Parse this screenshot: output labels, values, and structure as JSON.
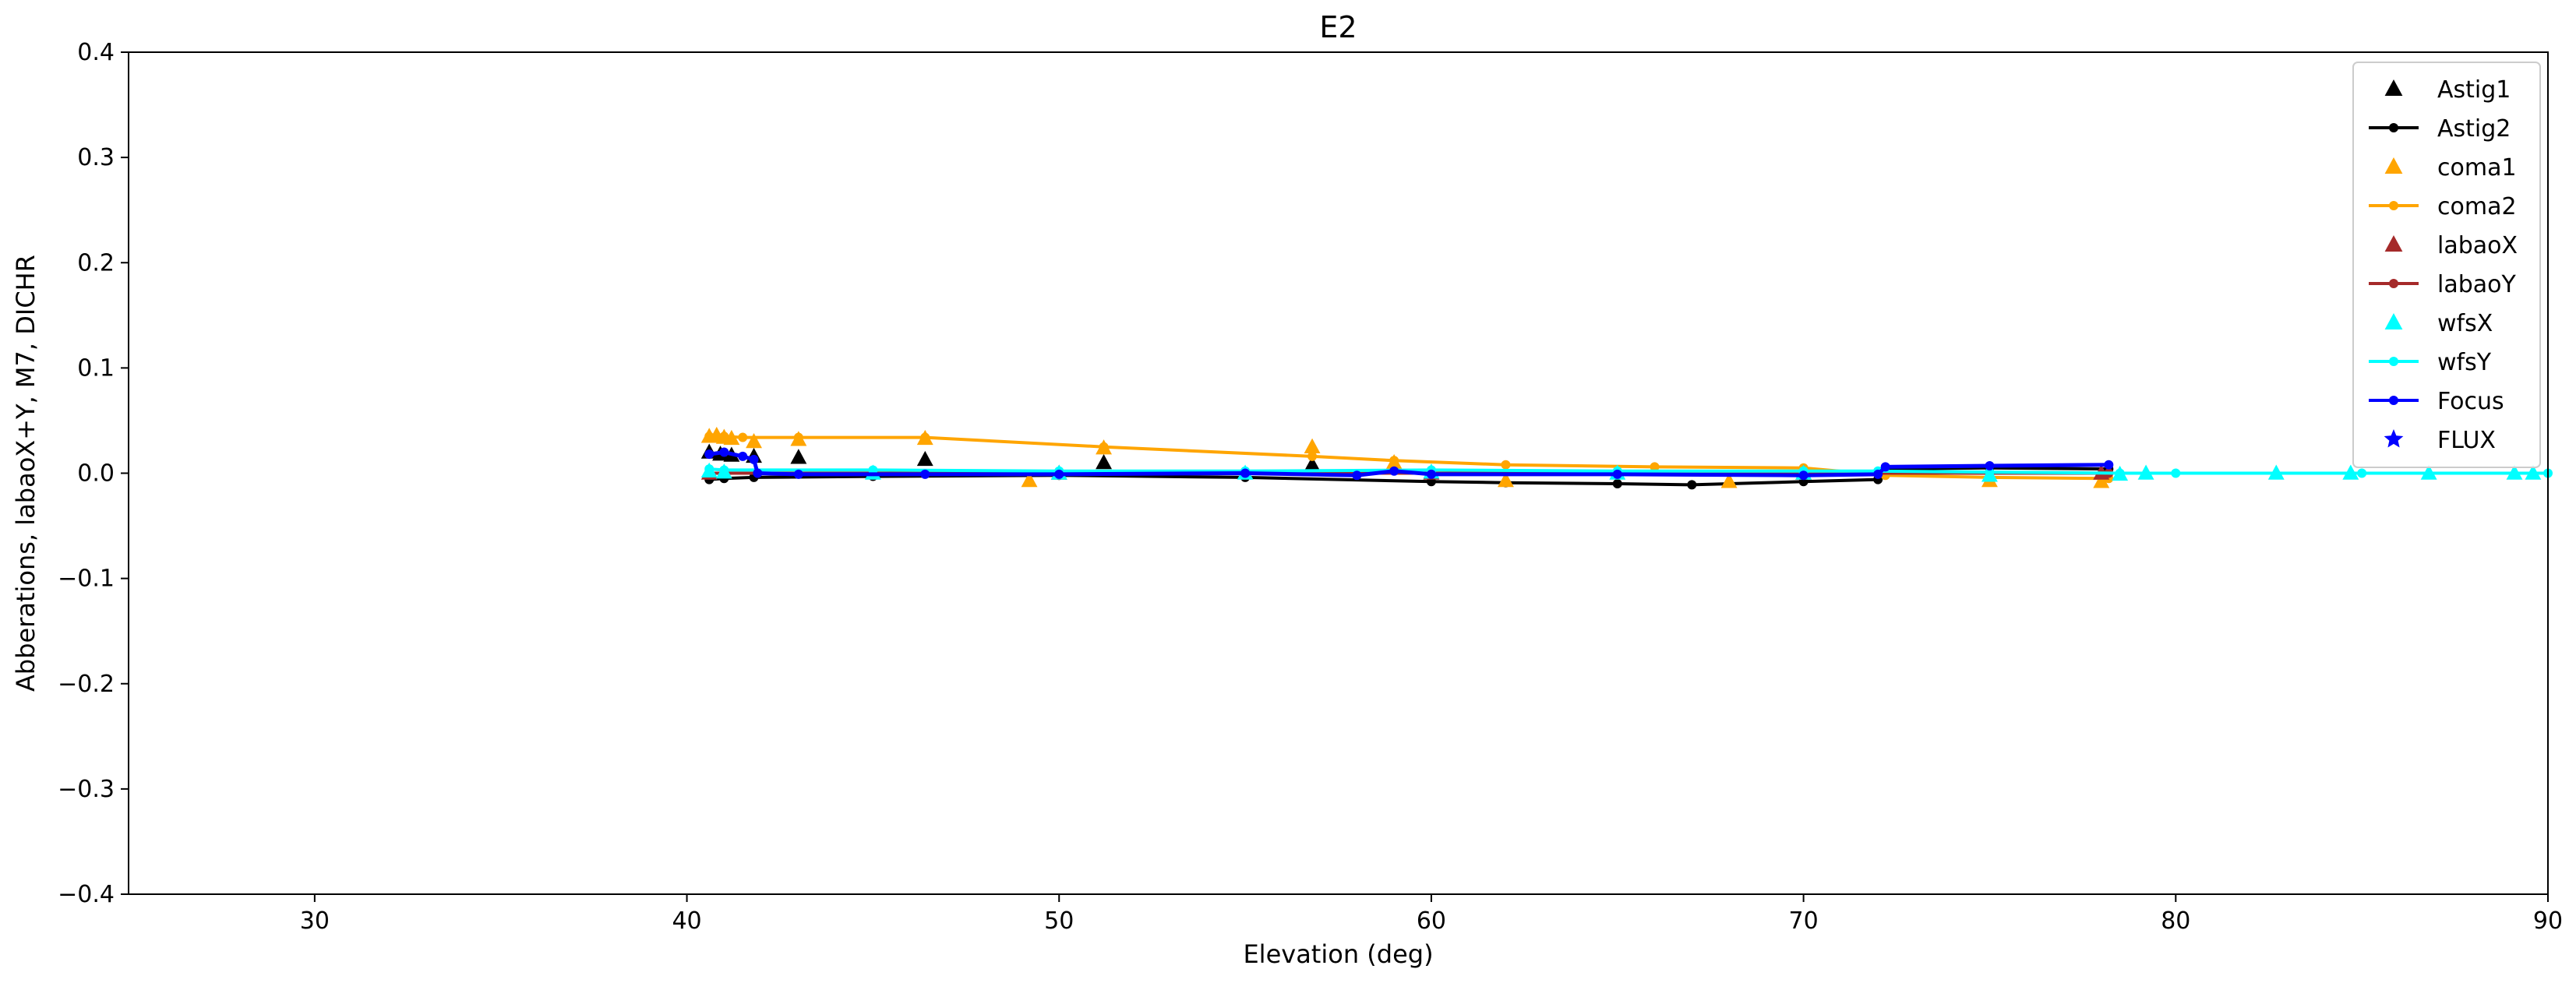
{
  "chart_data": {
    "type": "scatter",
    "title": "E2",
    "xlabel": "Elevation (deg)",
    "ylabel": "Abberations, labaoX+Y, M7, DICHR",
    "xlim": [
      25,
      90
    ],
    "ylim": [
      -0.4,
      0.4
    ],
    "xticks": [
      30,
      40,
      50,
      60,
      70,
      80,
      90
    ],
    "yticks": [
      -0.4,
      -0.3,
      -0.2,
      -0.1,
      0.0,
      0.1,
      0.2,
      0.3,
      0.4
    ],
    "xtick_labels": [
      "30",
      "40",
      "50",
      "60",
      "70",
      "80",
      "90"
    ],
    "ytick_labels": [
      "−0.4",
      "−0.3",
      "−0.2",
      "−0.1",
      "0.0",
      "0.1",
      "0.2",
      "0.3",
      "0.4"
    ],
    "grid": false,
    "legend_position": "top-right",
    "series": [
      {
        "name": "Astig1",
        "color": "#000000",
        "marker": "triangle",
        "line": false,
        "x": [
          40.6,
          40.9,
          41.2,
          41.8,
          43.0,
          46.4,
          51.2,
          56.8,
          59.0
        ],
        "y": [
          0.02,
          0.018,
          0.017,
          0.016,
          0.015,
          0.013,
          0.01,
          0.008,
          0.006
        ]
      },
      {
        "name": "Astig2",
        "color": "#000000",
        "marker": "dot",
        "line": true,
        "x": [
          40.6,
          41.0,
          41.8,
          45.0,
          50.0,
          55.0,
          60.0,
          62.0,
          65.0,
          67.0,
          70.0,
          72.0,
          72.2,
          75.0,
          78.2
        ],
        "y": [
          -0.006,
          -0.005,
          -0.004,
          -0.003,
          -0.002,
          -0.004,
          -0.008,
          -0.009,
          -0.01,
          -0.011,
          -0.008,
          -0.006,
          0.004,
          0.005,
          0.004
        ]
      },
      {
        "name": "coma1",
        "color": "#ffa500",
        "marker": "triangle",
        "line": false,
        "x": [
          40.6,
          40.8,
          41.0,
          41.2,
          41.8,
          43.0,
          46.4,
          49.2,
          51.2,
          56.8,
          59.0,
          62.0,
          68.0,
          75.0,
          78.0
        ],
        "y": [
          0.035,
          0.036,
          0.034,
          0.033,
          0.03,
          0.032,
          0.033,
          -0.007,
          0.024,
          0.025,
          0.01,
          -0.007,
          -0.008,
          -0.007,
          -0.008
        ]
      },
      {
        "name": "coma2",
        "color": "#ffa500",
        "marker": "dot",
        "line": true,
        "x": [
          40.6,
          41.0,
          41.5,
          43.0,
          46.4,
          51.2,
          56.8,
          59.0,
          62.0,
          66.0,
          70.0,
          72.2,
          75.0,
          78.2
        ],
        "y": [
          0.035,
          0.035,
          0.034,
          0.034,
          0.034,
          0.025,
          0.016,
          0.012,
          0.008,
          0.006,
          0.005,
          -0.002,
          -0.004,
          -0.005
        ]
      },
      {
        "name": "labaoX",
        "color": "#a52a2a",
        "marker": "triangle",
        "line": false,
        "x": [
          40.6,
          50.0,
          60.0,
          70.0,
          78.0
        ],
        "y": [
          0.0,
          0.0,
          0.0,
          0.0,
          0.0
        ]
      },
      {
        "name": "labaoY",
        "color": "#a52a2a",
        "marker": "dot",
        "line": true,
        "x": [
          40.6,
          50.0,
          60.0,
          70.0,
          78.2
        ],
        "y": [
          0.0,
          0.0,
          0.0,
          0.0,
          0.0
        ]
      },
      {
        "name": "wfsX",
        "color": "#00ffff",
        "marker": "triangle",
        "line": false,
        "x": [
          40.6,
          41.0,
          45.0,
          50.0,
          55.0,
          60.0,
          65.0,
          70.0,
          75.0,
          78.5,
          79.2,
          82.7,
          84.7,
          86.8,
          89.1,
          89.6
        ],
        "y": [
          0.002,
          0.001,
          0.0,
          0.0,
          0.0,
          0.001,
          0.0,
          0.0,
          -0.002,
          -0.001,
          0.0,
          0.0,
          0.0,
          0.0,
          0.0,
          0.0
        ]
      },
      {
        "name": "wfsY",
        "color": "#00ffff",
        "marker": "dot",
        "line": true,
        "x": [
          40.6,
          41.0,
          45.0,
          50.0,
          55.0,
          60.0,
          65.0,
          70.0,
          72.0,
          75.0,
          78.5,
          80.0,
          85.0,
          90.0
        ],
        "y": [
          0.004,
          0.003,
          0.003,
          0.002,
          0.002,
          0.003,
          0.002,
          0.002,
          0.002,
          0.001,
          0.0,
          0.0,
          0.0,
          0.0
        ]
      },
      {
        "name": "Focus",
        "color": "#0000ff",
        "marker": "dot",
        "line": true,
        "x": [
          40.6,
          41.0,
          41.5,
          41.8,
          41.9,
          43.0,
          46.4,
          50.0,
          55.0,
          58.0,
          59.0,
          60.0,
          65.0,
          70.0,
          72.0,
          72.2,
          75.0,
          78.2
        ],
        "y": [
          0.018,
          0.02,
          0.016,
          0.013,
          0.0,
          -0.001,
          -0.001,
          -0.001,
          0.0,
          -0.002,
          0.002,
          -0.001,
          -0.001,
          -0.002,
          -0.001,
          0.006,
          0.007,
          0.008
        ]
      },
      {
        "name": "FLUX",
        "color": "#0000ff",
        "marker": "star",
        "line": false,
        "x": [],
        "y": []
      }
    ]
  }
}
